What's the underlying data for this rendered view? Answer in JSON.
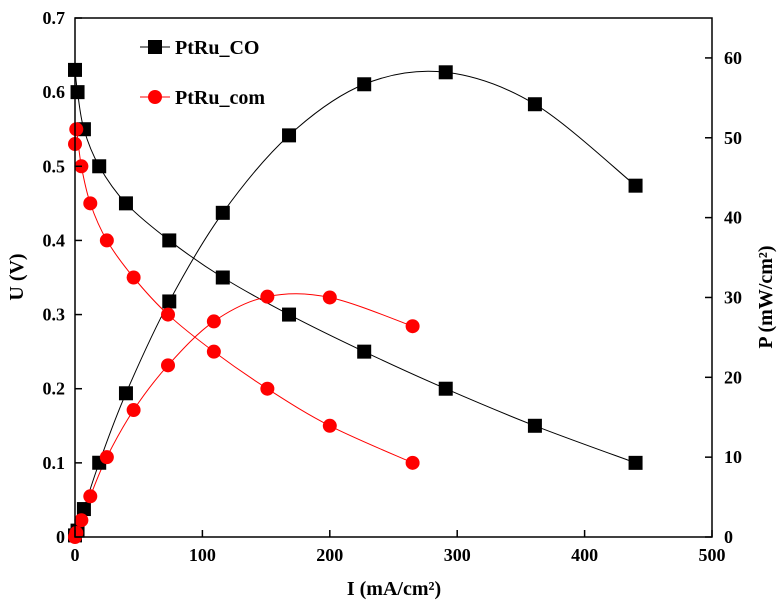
{
  "chart_data": {
    "type": "line",
    "title": "",
    "xlabel": "I (mA/cm²)",
    "ylabel_left": "U (V)",
    "ylabel_right": "P (mW/cm²)",
    "xlim": [
      0,
      500
    ],
    "ylim_left": [
      0,
      0.7
    ],
    "ylim_right": [
      0,
      65
    ],
    "x_ticks": [
      0,
      100,
      200,
      300,
      400,
      500
    ],
    "y_left_ticks": [
      0,
      0.1,
      0.2,
      0.3,
      0.4,
      0.5,
      0.6,
      0.7
    ],
    "y_right_ticks": [
      0,
      10,
      20,
      30,
      40,
      50,
      60
    ],
    "grid": false,
    "legend_position": "top-left",
    "legend": [
      {
        "name": "PtRu_CO",
        "marker": "square",
        "color": "#000000"
      },
      {
        "name": "PtRu_com",
        "marker": "circle",
        "color": "#ff0000"
      }
    ],
    "series": [
      {
        "name": "PtRu_CO",
        "quantity": "U",
        "axis": "left",
        "marker": "square",
        "color": "#000000",
        "x": [
          0,
          2,
          7,
          19,
          40,
          74,
          116,
          168,
          227,
          291,
          361,
          440
        ],
        "y": [
          0.63,
          0.6,
          0.55,
          0.5,
          0.45,
          0.4,
          0.35,
          0.3,
          0.25,
          0.2,
          0.15,
          0.1
        ]
      },
      {
        "name": "PtRu_CO",
        "quantity": "P",
        "axis": "right",
        "marker": "square",
        "color": "#000000",
        "x": [
          0,
          2,
          7,
          19,
          40,
          74,
          116,
          168,
          227,
          291,
          361,
          440
        ],
        "y": [
          0.2,
          0.8,
          3.5,
          9.3,
          18.0,
          29.5,
          40.6,
          50.3,
          56.7,
          58.2,
          54.2,
          44.0
        ]
      },
      {
        "name": "PtRu_com",
        "quantity": "U",
        "axis": "left",
        "marker": "circle",
        "color": "#ff0000",
        "x": [
          0,
          1,
          5,
          12,
          25,
          46,
          73,
          109,
          151,
          200,
          265
        ],
        "y": [
          0.53,
          0.55,
          0.5,
          0.45,
          0.4,
          0.35,
          0.3,
          0.25,
          0.2,
          0.15,
          0.1
        ]
      },
      {
        "name": "PtRu_com",
        "quantity": "P",
        "axis": "right",
        "marker": "circle",
        "color": "#ff0000",
        "x": [
          0,
          1,
          5,
          12,
          25,
          46,
          73,
          109,
          151,
          200,
          265
        ],
        "y": [
          0.0,
          0.5,
          2.1,
          5.1,
          10.0,
          15.9,
          21.5,
          27.0,
          30.1,
          30.0,
          26.4
        ]
      }
    ]
  }
}
